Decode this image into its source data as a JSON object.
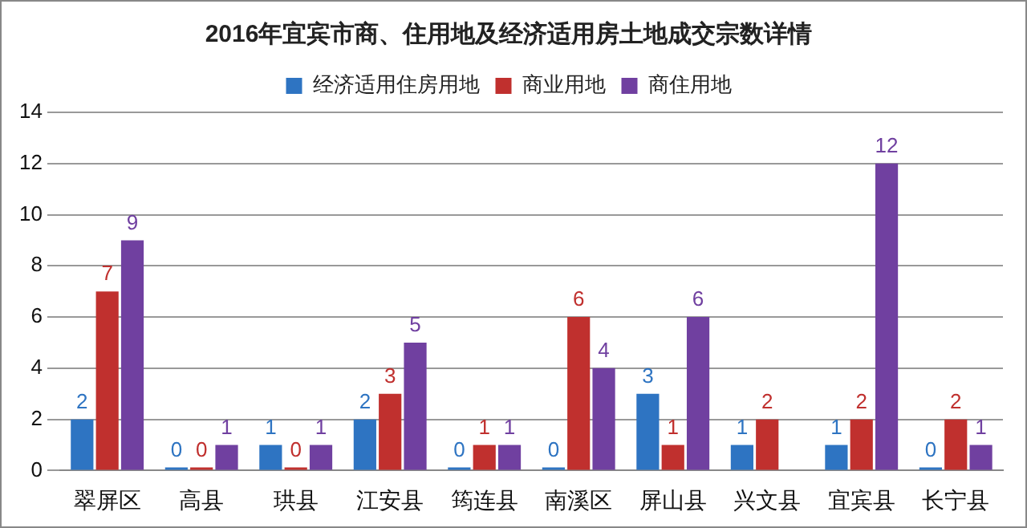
{
  "chart_data": {
    "type": "bar",
    "title": "2016年宜宾市商、住用地及经济适用房土地成交宗数详情",
    "categories": [
      "翠屏区",
      "高县",
      "珙县",
      "江安县",
      "筠连县",
      "南溪区",
      "屏山县",
      "兴文县",
      "宜宾县",
      "长宁县"
    ],
    "series": [
      {
        "name": "经济适用住房用地",
        "color": "#2e74c2",
        "values": [
          2,
          0,
          1,
          2,
          0,
          0,
          3,
          1,
          1,
          0
        ]
      },
      {
        "name": "商业用地",
        "color": "#c0302e",
        "values": [
          7,
          0,
          0,
          3,
          1,
          6,
          1,
          2,
          2,
          2
        ]
      },
      {
        "name": "商住用地",
        "color": "#7040a0",
        "values": [
          9,
          1,
          1,
          5,
          1,
          4,
          6,
          null,
          12,
          1
        ]
      }
    ],
    "ylim": [
      0,
      14
    ],
    "yticks": [
      0,
      2,
      4,
      6,
      8,
      10,
      12,
      14
    ],
    "grid": "y",
    "legend": "top",
    "data_labels": true
  }
}
